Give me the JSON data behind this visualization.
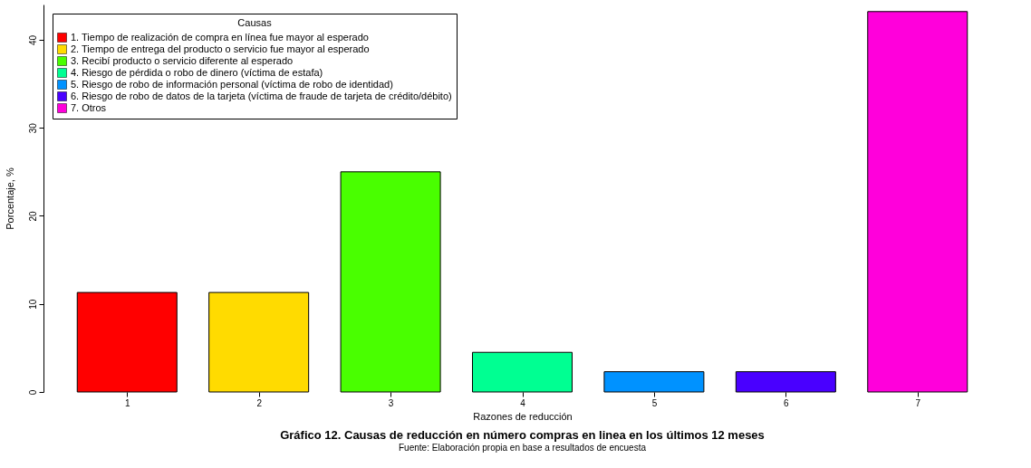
{
  "chart_data": {
    "type": "bar",
    "title": "Gráfico 12. Causas de reducción en número compras en linea en los últimos 12 meses",
    "annotations": [
      "Fuente: Elaboración propia en base a resultados de encuesta"
    ],
    "xlabel": "Razones de reducción",
    "ylabel": "Porcentaje, %",
    "legend_title": "Causas",
    "categories": [
      "1",
      "2",
      "3",
      "4",
      "5",
      "6",
      "7"
    ],
    "series": [
      {
        "name": "1. Tiempo de realización de compra en línea fue mayor al esperado",
        "color": "#ff0000",
        "values": [
          11.3,
          null,
          null,
          null,
          null,
          null,
          null
        ]
      },
      {
        "name": "2. Tiempo de entrega del producto o servicio fue mayor al esperado",
        "color": "#ffdb00",
        "values": [
          null,
          11.3,
          null,
          null,
          null,
          null,
          null
        ]
      },
      {
        "name": "3. Recibí producto o servicio diferente al esperado",
        "color": "#49ff00",
        "values": [
          null,
          null,
          25.0,
          null,
          null,
          null,
          null
        ]
      },
      {
        "name": "4. Riesgo de pérdida o robo de dinero (víctima de estafa)",
        "color": "#00ff92",
        "values": [
          null,
          null,
          null,
          4.5,
          null,
          null,
          null
        ]
      },
      {
        "name": "5. Riesgo de robo de información personal (víctima de robo de identidad)",
        "color": "#0092ff",
        "values": [
          null,
          null,
          null,
          null,
          2.3,
          null,
          null
        ]
      },
      {
        "name": "6. Riesgo de robo de datos de la tarjeta (víctima de fraude de tarjeta de crédito/débito)",
        "color": "#4900ff",
        "values": [
          null,
          null,
          null,
          null,
          null,
          2.3,
          null
        ]
      },
      {
        "name": "7. Otros",
        "color": "#ff00db",
        "values": [
          null,
          null,
          null,
          null,
          null,
          null,
          43.2
        ]
      }
    ],
    "ylim": [
      0,
      44
    ],
    "yticks": [
      0,
      10,
      20,
      30,
      40
    ],
    "grid": false,
    "legend": "top left"
  }
}
